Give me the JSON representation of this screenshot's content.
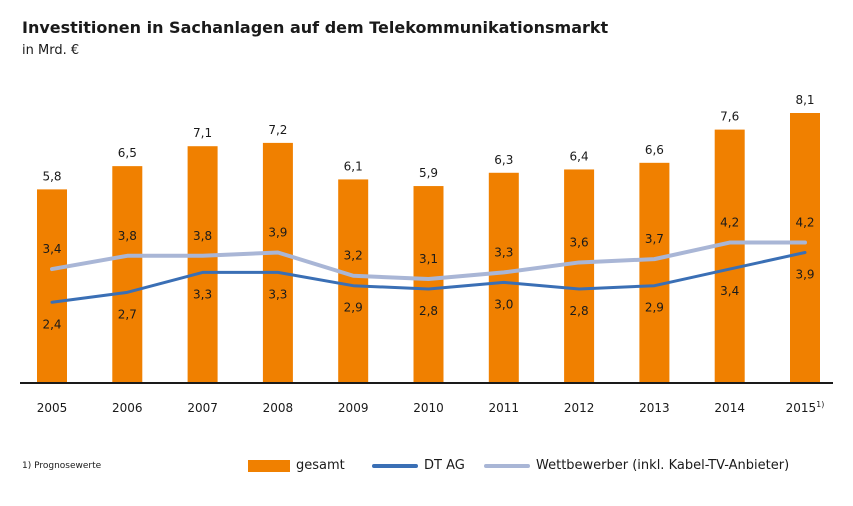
{
  "chart_data": {
    "type": "bar",
    "title": "Investitionen in Sachanlagen auf dem Telekommunikationsmarkt",
    "subtitle": "in Mrd. €",
    "categories": [
      "2005",
      "2006",
      "2007",
      "2008",
      "2009",
      "2010",
      "2011",
      "2012",
      "2013",
      "2014",
      "2015"
    ],
    "category_footnote": {
      "index": 10,
      "marker": "1)"
    },
    "ylim": [
      0,
      8.5
    ],
    "grid": false,
    "legend_position": "bottom",
    "series": [
      {
        "name": "gesamt",
        "type": "bar",
        "color": "#f08000",
        "values": [
          5.8,
          6.5,
          7.1,
          7.2,
          6.1,
          5.9,
          6.3,
          6.4,
          6.6,
          7.6,
          8.1
        ],
        "labels": [
          "5,8",
          "6,5",
          "7,1",
          "7,2",
          "6,1",
          "5,9",
          "6,3",
          "6,4",
          "6,6",
          "7,6",
          "8,1"
        ]
      },
      {
        "name": "DT AG",
        "type": "line",
        "color": "#3a6fb5",
        "values": [
          2.4,
          2.7,
          3.3,
          3.3,
          2.9,
          2.8,
          3.0,
          2.8,
          2.9,
          3.4,
          3.9
        ],
        "labels": [
          "2,4",
          "2,7",
          "3,3",
          "3,3",
          "2,9",
          "2,8",
          "3,0",
          "2,8",
          "2,9",
          "3,4",
          "3,9"
        ]
      },
      {
        "name": "Wettbewerber (inkl. Kabel-TV-Anbieter)",
        "type": "line",
        "color": "#a9b6d6",
        "values": [
          3.4,
          3.8,
          3.8,
          3.9,
          3.2,
          3.1,
          3.3,
          3.6,
          3.7,
          4.2,
          4.2
        ],
        "labels": [
          "3,4",
          "3,8",
          "3,8",
          "3,9",
          "3,2",
          "3,1",
          "3,3",
          "3,6",
          "3,7",
          "4,2",
          "4,2"
        ]
      }
    ],
    "footnote": "1) Prognosewerte"
  }
}
